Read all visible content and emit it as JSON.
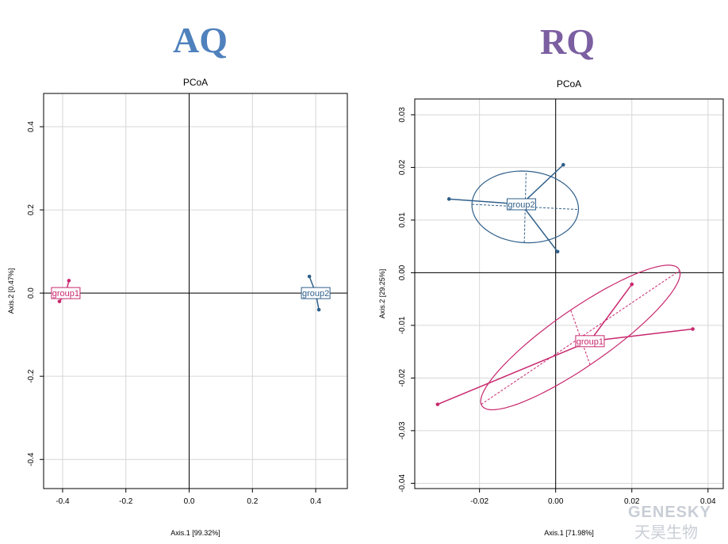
{
  "panels": {
    "aq_label": "AQ",
    "rq_label": "RQ"
  },
  "colors": {
    "group1": "#c8286e",
    "group2": "#2f5f8a",
    "grid": "#d6d6d6"
  },
  "watermark": {
    "text": "GENESKY",
    "cn": "天昊生物"
  },
  "chart_data": [
    {
      "type": "scatter",
      "title": "PCoA",
      "xlabel": "Axis.1  [99.32%]",
      "ylabel": "Axis.2  [0.47%]",
      "xlim": [
        -0.46,
        0.5
      ],
      "ylim": [
        -0.47,
        0.48
      ],
      "xticks": [
        -0.4,
        -0.2,
        0.0,
        0.2,
        0.4
      ],
      "xtick_labels": [
        "-0.4",
        "-0.2",
        "0.0",
        "0.2",
        "0.4"
      ],
      "yticks": [
        -0.4,
        -0.2,
        0.0,
        0.2,
        0.4
      ],
      "ytick_labels": [
        "-0.4",
        "-0.2",
        "0.0",
        "0.2",
        "0.4"
      ],
      "grid": true,
      "groups": [
        {
          "name": "group1",
          "color": "#c8286e",
          "centroid": [
            -0.39,
            0.0
          ],
          "points": [
            [
              -0.38,
              0.03
            ],
            [
              -0.41,
              -0.02
            ]
          ]
        },
        {
          "name": "group2",
          "color": "#2f5f8a",
          "centroid": [
            0.4,
            0.0
          ],
          "points": [
            [
              0.38,
              0.04
            ],
            [
              0.41,
              -0.04
            ]
          ]
        }
      ]
    },
    {
      "type": "scatter",
      "title": "PCoA",
      "xlabel": "Axis.1  [71.98%]",
      "ylabel": "Axis.2  [29.25%]",
      "xlim": [
        -0.037,
        0.044
      ],
      "ylim": [
        -0.041,
        0.033
      ],
      "xticks": [
        -0.02,
        0.0,
        0.02,
        0.04
      ],
      "xtick_labels": [
        "-0.02",
        "0.00",
        "0.02",
        "0.04"
      ],
      "yticks": [
        -0.04,
        -0.03,
        -0.02,
        -0.01,
        0.0,
        0.01,
        0.02,
        0.03
      ],
      "ytick_labels": [
        "-0.04",
        "-0.03",
        "-0.02",
        "-0.01",
        "0.00",
        "0.01",
        "0.02",
        "0.03"
      ],
      "grid": true,
      "groups": [
        {
          "name": "group2",
          "color": "#2f5f8a",
          "centroid": [
            -0.009,
            0.013
          ],
          "points": [
            [
              -0.028,
              0.014
            ],
            [
              0.002,
              0.0205
            ],
            [
              0.0005,
              0.004
            ]
          ],
          "ellipse": {
            "center": [
              -0.008,
              0.0125
            ],
            "a": 0.014,
            "b": 0.0068,
            "angle_deg": -2
          }
        },
        {
          "name": "group1",
          "color": "#c8286e",
          "centroid": [
            0.009,
            -0.013
          ],
          "points": [
            [
              -0.031,
              -0.025
            ],
            [
              0.02,
              -0.0022
            ],
            [
              0.036,
              -0.0107
            ]
          ],
          "ellipse": {
            "center": [
              0.0065,
              -0.0123
            ],
            "a": 0.029,
            "b": 0.0058,
            "angle_deg": 26
          }
        }
      ]
    }
  ]
}
